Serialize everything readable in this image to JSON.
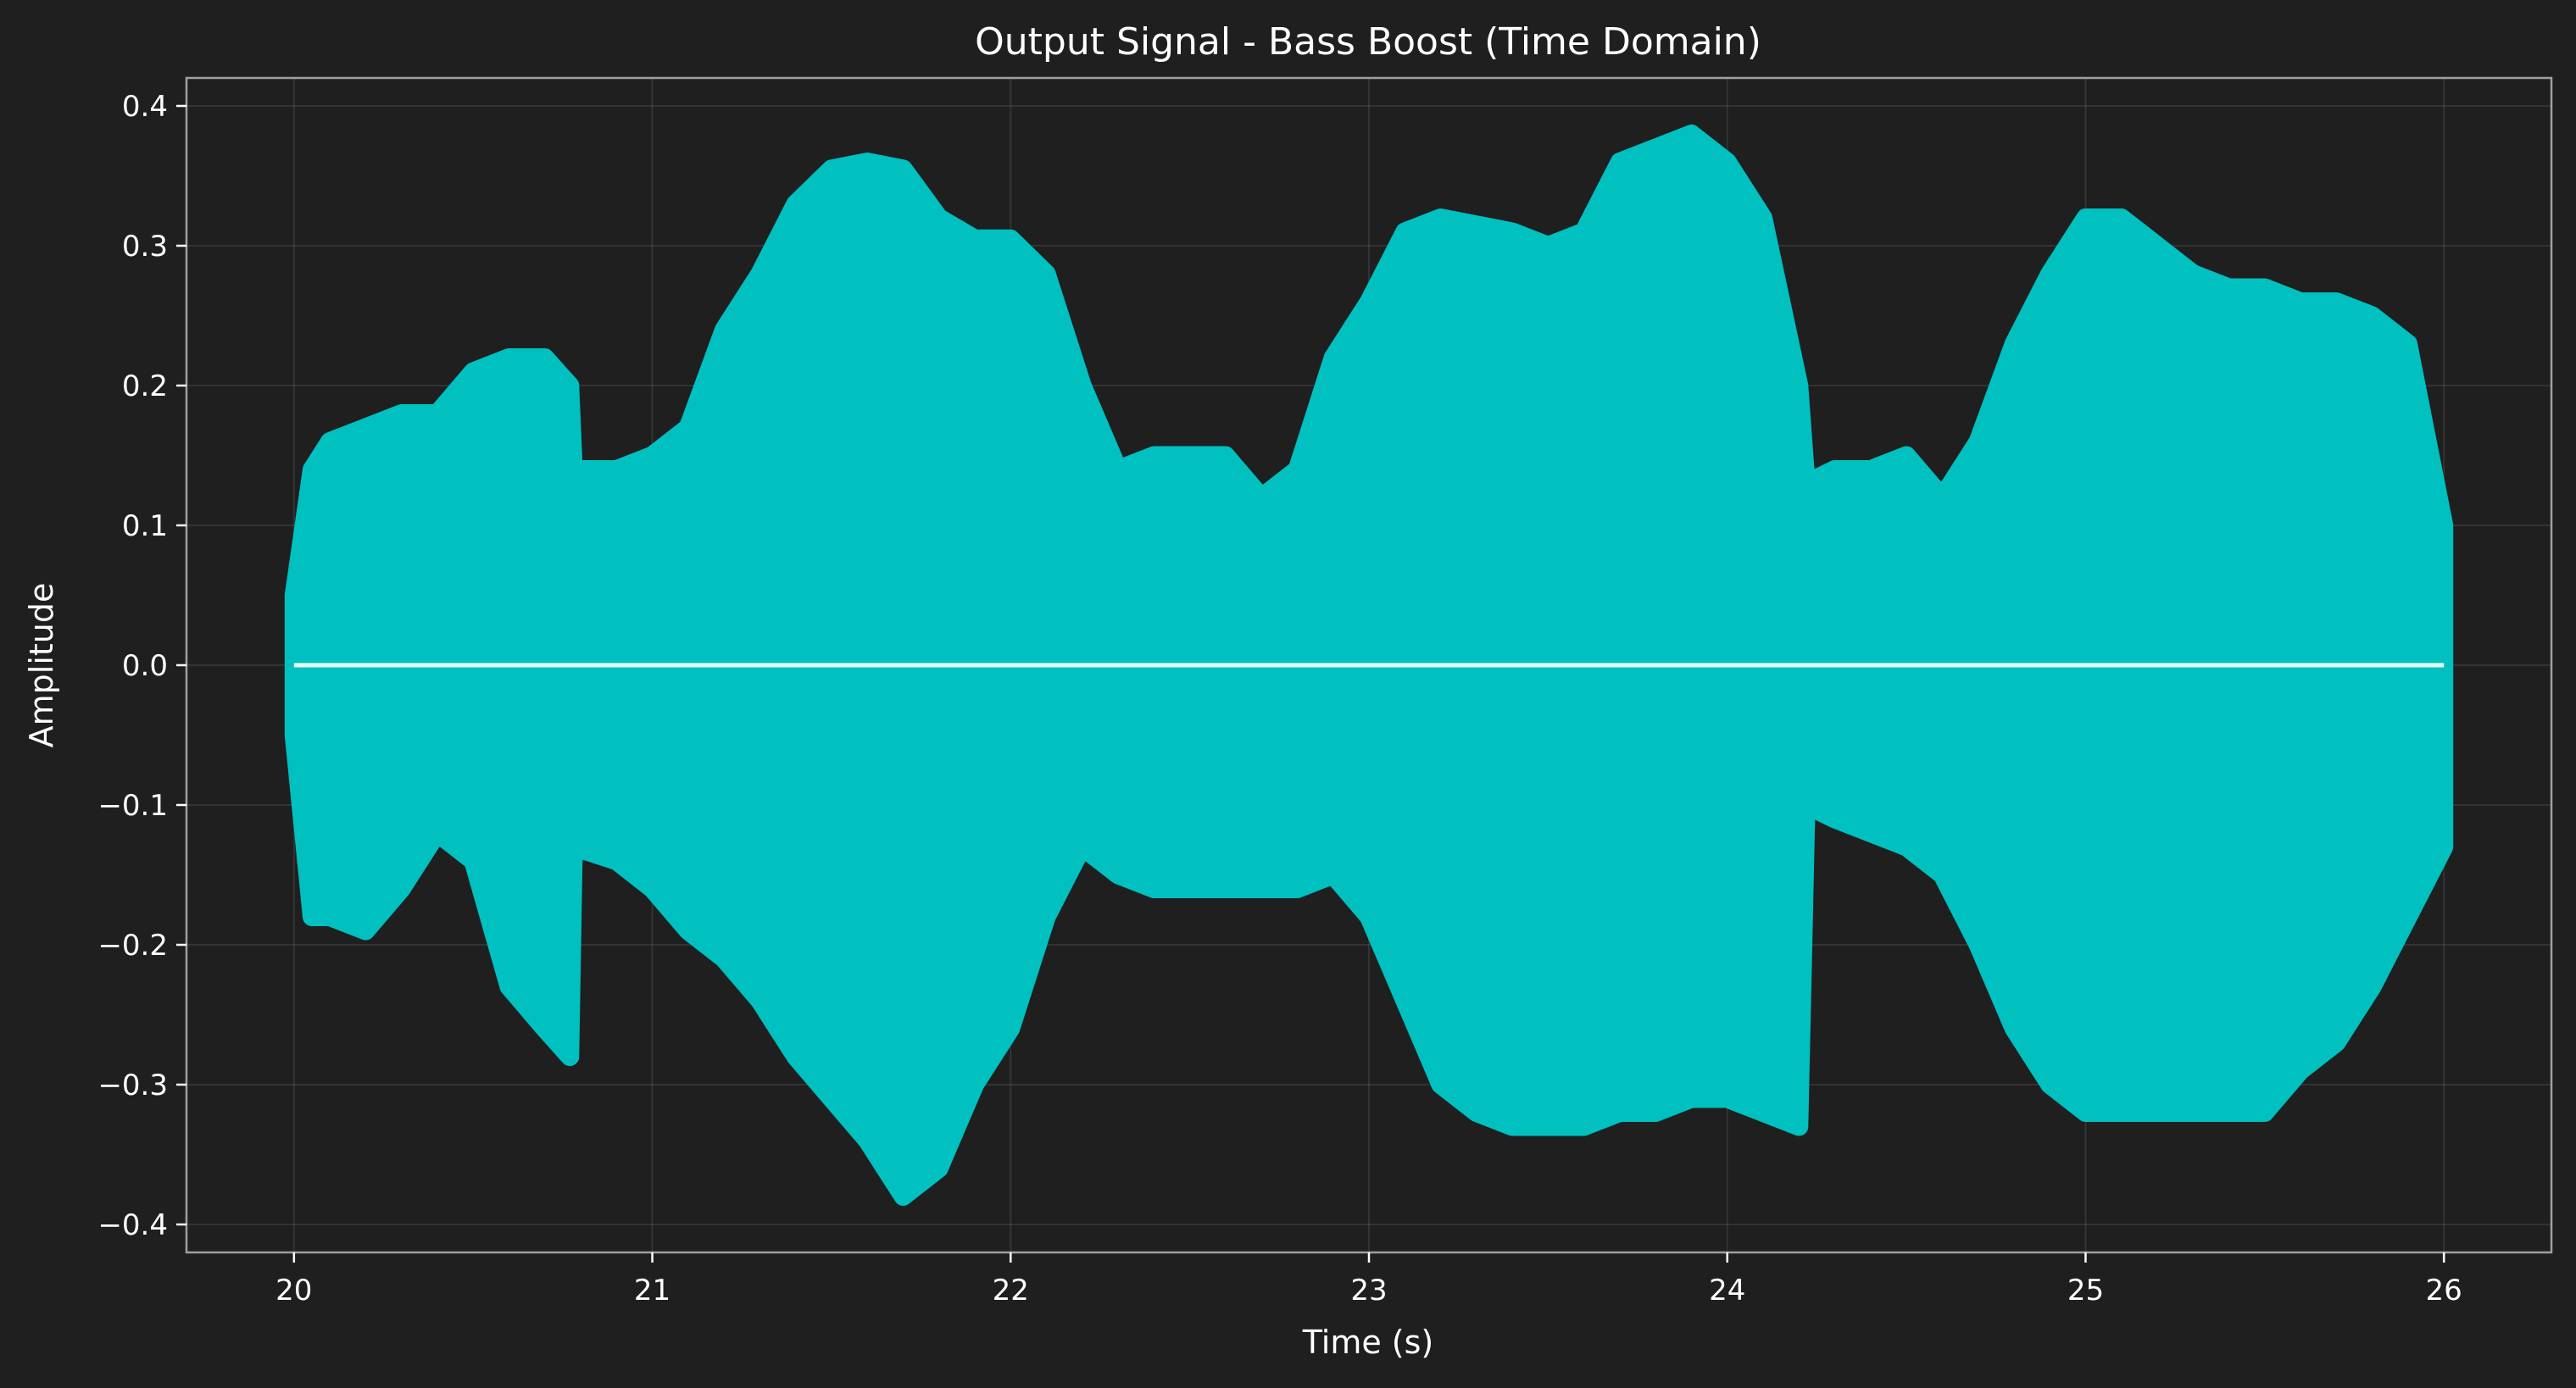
{
  "chart_data": {
    "type": "area",
    "title": "Output Signal - Bass Boost (Time Domain)",
    "xlabel": "Time (s)",
    "ylabel": "Amplitude",
    "xlim": [
      19.7,
      26.3
    ],
    "ylim": [
      -0.42,
      0.42
    ],
    "xticks": [
      20,
      21,
      22,
      23,
      24,
      25,
      26
    ],
    "xtick_labels": [
      "20",
      "21",
      "22",
      "23",
      "24",
      "25",
      "26"
    ],
    "yticks": [
      -0.4,
      -0.3,
      -0.2,
      -0.1,
      0.0,
      0.1,
      0.2,
      0.3,
      0.4
    ],
    "ytick_labels": [
      "−0.4",
      "−0.3",
      "−0.2",
      "−0.1",
      "0.0",
      "0.1",
      "0.2",
      "0.3",
      "0.4"
    ],
    "grid": true,
    "colors": {
      "background": "#1f1f1f",
      "signal": "#00c0c0",
      "center_line": "#e8ffff",
      "text": "#ffffff"
    },
    "series": [
      {
        "style": "envelope",
        "x": [
          20.0,
          20.05,
          20.1,
          20.2,
          20.3,
          20.4,
          20.5,
          20.6,
          20.7,
          20.77,
          20.78,
          20.9,
          21.0,
          21.1,
          21.2,
          21.3,
          21.4,
          21.5,
          21.6,
          21.7,
          21.8,
          21.9,
          22.0,
          22.1,
          22.2,
          22.3,
          22.4,
          22.5,
          22.6,
          22.7,
          22.8,
          22.9,
          23.0,
          23.1,
          23.2,
          23.3,
          23.4,
          23.5,
          23.6,
          23.7,
          23.8,
          23.9,
          24.0,
          24.1,
          24.2,
          24.22,
          24.3,
          24.4,
          24.5,
          24.6,
          24.7,
          24.8,
          24.9,
          25.0,
          25.1,
          25.2,
          25.3,
          25.4,
          25.5,
          25.6,
          25.7,
          25.8,
          25.9,
          26.0
        ],
        "upper": [
          0.05,
          0.14,
          0.16,
          0.17,
          0.18,
          0.18,
          0.21,
          0.22,
          0.22,
          0.2,
          0.14,
          0.14,
          0.15,
          0.17,
          0.24,
          0.28,
          0.33,
          0.355,
          0.36,
          0.355,
          0.32,
          0.305,
          0.305,
          0.28,
          0.2,
          0.14,
          0.15,
          0.15,
          0.15,
          0.12,
          0.14,
          0.22,
          0.26,
          0.31,
          0.32,
          0.315,
          0.31,
          0.3,
          0.31,
          0.36,
          0.37,
          0.38,
          0.36,
          0.32,
          0.2,
          0.13,
          0.14,
          0.14,
          0.15,
          0.12,
          0.16,
          0.23,
          0.28,
          0.32,
          0.32,
          0.3,
          0.28,
          0.27,
          0.27,
          0.26,
          0.26,
          0.25,
          0.23,
          0.1
        ],
        "lower": [
          -0.05,
          -0.18,
          -0.18,
          -0.19,
          -0.16,
          -0.12,
          -0.14,
          -0.23,
          -0.26,
          -0.28,
          -0.13,
          -0.14,
          -0.16,
          -0.19,
          -0.21,
          -0.24,
          -0.28,
          -0.31,
          -0.34,
          -0.38,
          -0.36,
          -0.3,
          -0.26,
          -0.18,
          -0.13,
          -0.15,
          -0.16,
          -0.16,
          -0.16,
          -0.16,
          -0.16,
          -0.15,
          -0.18,
          -0.24,
          -0.3,
          -0.32,
          -0.33,
          -0.33,
          -0.33,
          -0.32,
          -0.32,
          -0.31,
          -0.31,
          -0.32,
          -0.33,
          -0.1,
          -0.11,
          -0.12,
          -0.13,
          -0.15,
          -0.2,
          -0.26,
          -0.3,
          -0.32,
          -0.32,
          -0.32,
          -0.32,
          -0.32,
          -0.32,
          -0.29,
          -0.27,
          -0.23,
          -0.18,
          -0.13
        ]
      },
      {
        "style": "line",
        "x": [
          20.0,
          26.0
        ],
        "values": [
          0.0,
          0.0
        ]
      }
    ]
  }
}
